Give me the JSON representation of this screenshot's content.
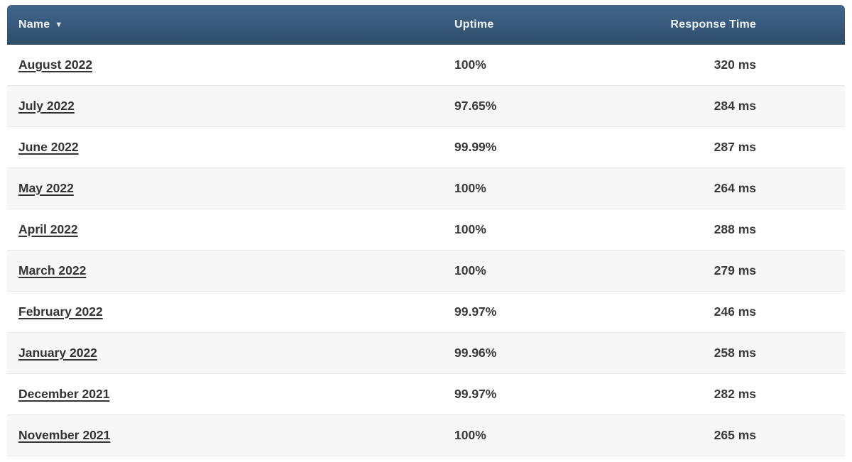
{
  "table": {
    "sort_icon": "▼",
    "columns": [
      {
        "label": "Name",
        "sorted": "desc"
      },
      {
        "label": "Uptime"
      },
      {
        "label": "Response Time"
      }
    ],
    "rows": [
      {
        "name": "August 2022",
        "uptime": "100%",
        "response_time": "320 ms"
      },
      {
        "name": "July 2022",
        "uptime": "97.65%",
        "response_time": "284 ms"
      },
      {
        "name": "June 2022",
        "uptime": "99.99%",
        "response_time": "287 ms"
      },
      {
        "name": "May 2022",
        "uptime": "100%",
        "response_time": "264 ms"
      },
      {
        "name": "April 2022",
        "uptime": "100%",
        "response_time": "288 ms"
      },
      {
        "name": "March 2022",
        "uptime": "100%",
        "response_time": "279 ms"
      },
      {
        "name": "February 2022",
        "uptime": "99.97%",
        "response_time": "246 ms"
      },
      {
        "name": "January 2022",
        "uptime": "99.96%",
        "response_time": "258 ms"
      },
      {
        "name": "December 2021",
        "uptime": "99.97%",
        "response_time": "282 ms"
      },
      {
        "name": "November 2021",
        "uptime": "100%",
        "response_time": "265 ms"
      }
    ],
    "colors": {
      "header_gradient_top": "#41678a",
      "header_gradient_bottom": "#2e4d6a",
      "header_text": "#eef3f8",
      "row_stripe": "#f7f7f7",
      "row_border": "#e8e8e8",
      "cell_text": "#3a3a3a"
    }
  }
}
